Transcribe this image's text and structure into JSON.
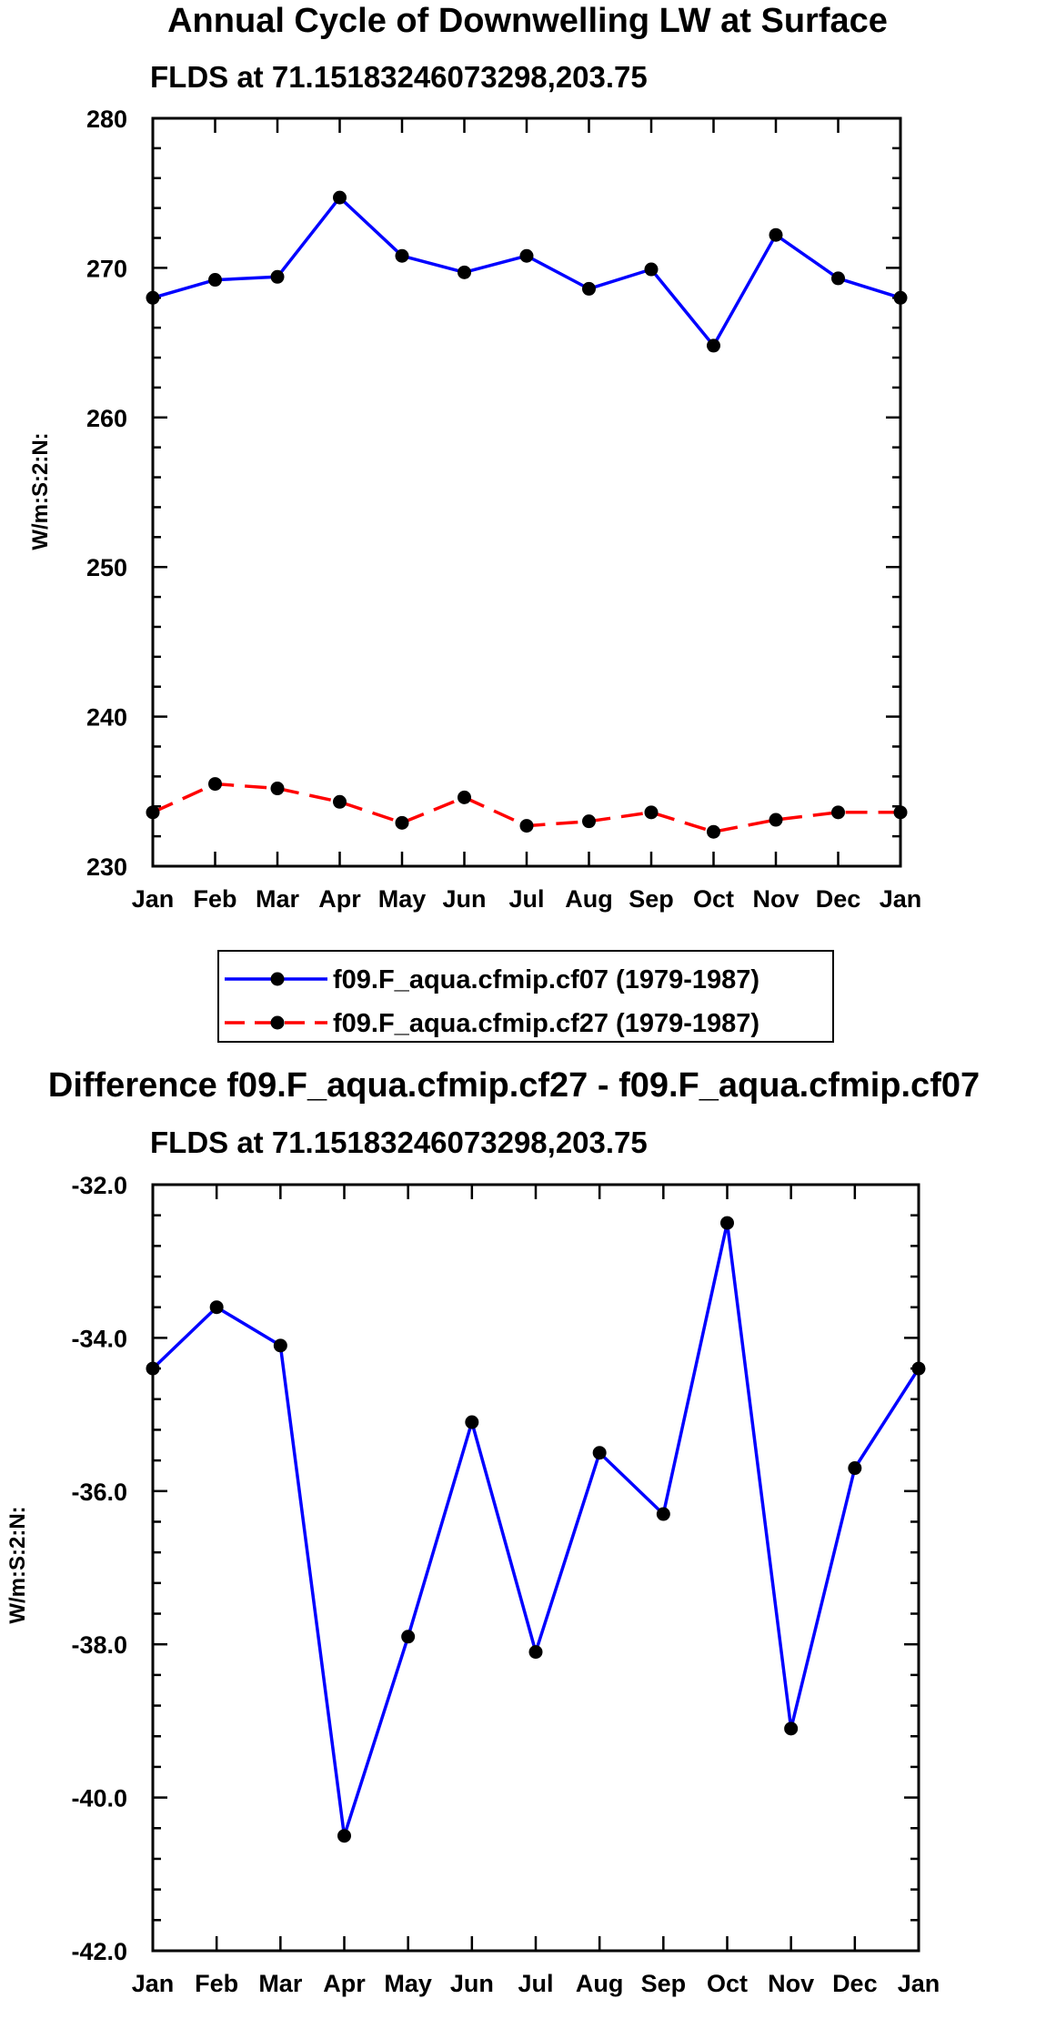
{
  "chart_data": [
    {
      "type": "line",
      "title": "Annual Cycle of Downwelling LW at Surface",
      "subtitle": "FLDS at 71.15183246073298,203.75",
      "xlabel": "",
      "ylabel": "W/m:S:2:N:",
      "categories": [
        "Jan",
        "Feb",
        "Mar",
        "Apr",
        "May",
        "Jun",
        "Jul",
        "Aug",
        "Sep",
        "Oct",
        "Nov",
        "Dec",
        "Jan"
      ],
      "ylim": [
        230,
        280
      ],
      "yticks": [
        230,
        240,
        250,
        260,
        270,
        280
      ],
      "ytick_labels": [
        "230",
        "240",
        "250",
        "260",
        "270",
        "280"
      ],
      "series": [
        {
          "name": "f09.F_aqua.cfmip.cf07 (1979-1987)",
          "color": "#0000ff",
          "dash": "solid",
          "values": [
            268.0,
            269.2,
            269.4,
            274.7,
            270.8,
            269.7,
            270.8,
            268.6,
            269.9,
            264.8,
            272.2,
            269.3,
            268.0
          ]
        },
        {
          "name": "f09.F_aqua.cfmip.cf27 (1979-1987)",
          "color": "#ff0000",
          "dash": "dashed",
          "values": [
            233.6,
            235.5,
            235.2,
            234.3,
            232.9,
            234.6,
            232.7,
            233.0,
            233.6,
            232.3,
            233.1,
            233.6,
            233.6
          ]
        }
      ],
      "legend": "below"
    },
    {
      "type": "line",
      "title": "Difference f09.F_aqua.cfmip.cf27 - f09.F_aqua.cfmip.cf07",
      "subtitle": "FLDS at 71.15183246073298,203.75",
      "xlabel": "",
      "ylabel": "W/m:S:2:N:",
      "categories": [
        "Jan",
        "Feb",
        "Mar",
        "Apr",
        "May",
        "Jun",
        "Jul",
        "Aug",
        "Sep",
        "Oct",
        "Nov",
        "Dec",
        "Jan"
      ],
      "ylim": [
        -42,
        -32
      ],
      "yticks": [
        -42,
        -40,
        -38,
        -36,
        -34,
        -32
      ],
      "ytick_labels": [
        "-42.0",
        "-40.0",
        "-38.0",
        "-36.0",
        "-34.0",
        "-32.0"
      ],
      "series": [
        {
          "name": "Difference",
          "color": "#0000ff",
          "dash": "solid",
          "values": [
            -34.4,
            -33.6,
            -34.1,
            -40.5,
            -37.9,
            -35.1,
            -38.1,
            -35.5,
            -36.3,
            -32.5,
            -39.1,
            -35.7,
            -34.4
          ]
        }
      ]
    }
  ]
}
